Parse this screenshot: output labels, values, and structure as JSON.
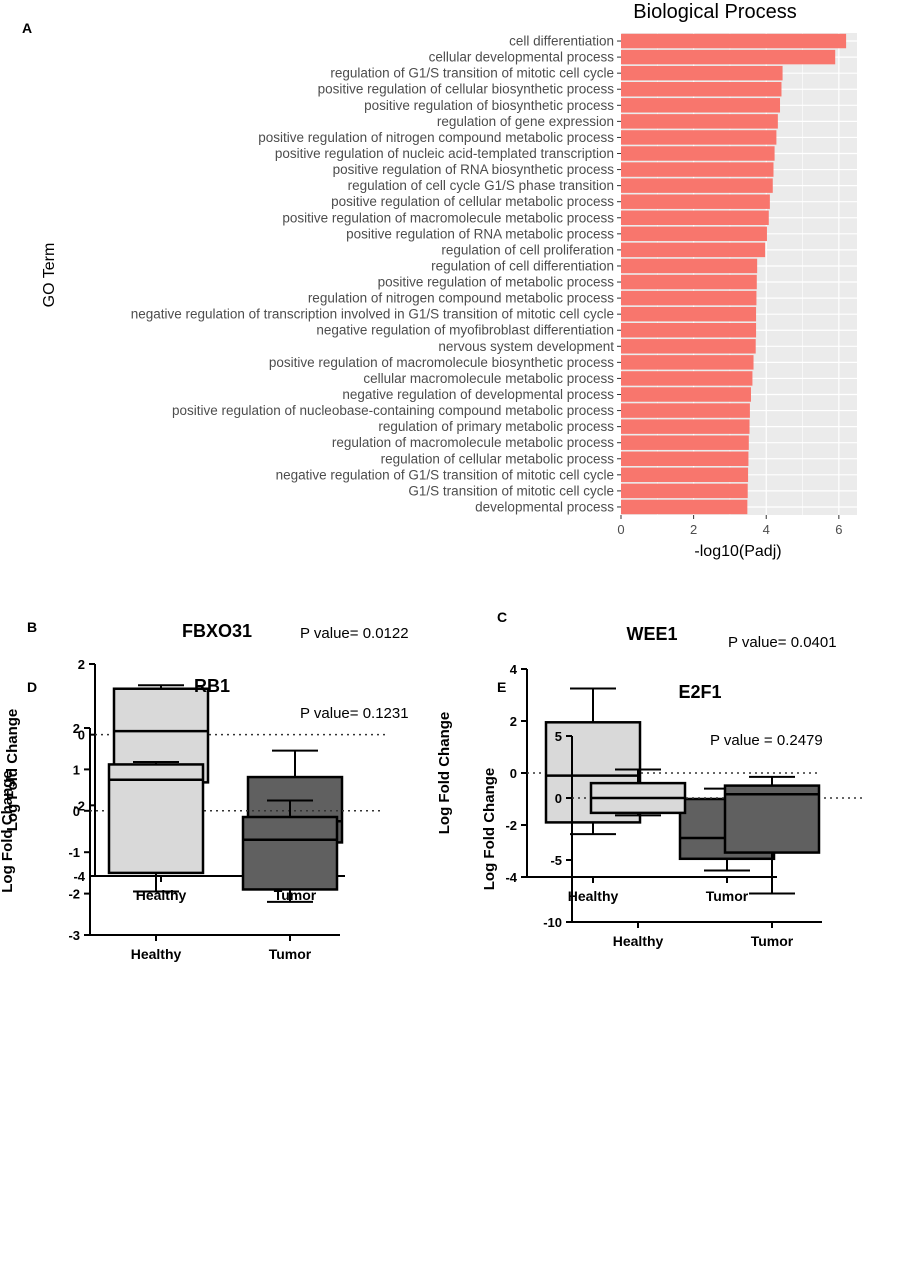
{
  "chart_data": [
    {
      "panel": "A",
      "type": "bar",
      "orientation": "horizontal",
      "title": "Biological Process",
      "xlabel": "-log10(Padj)",
      "ylabel": "GO Term",
      "xlim": [
        0,
        6.5
      ],
      "xticks": [
        "0",
        "2",
        "4",
        "6"
      ],
      "bar_color": "#f8766d",
      "panel_bg": "#ebebeb",
      "grid": true,
      "categories": [
        "cell differentiation",
        "cellular developmental process",
        "regulation of G1/S transition of mitotic cell cycle",
        "positive regulation of cellular biosynthetic process",
        "positive regulation of biosynthetic process",
        "regulation of gene expression",
        "positive regulation of nitrogen compound metabolic process",
        "positive regulation of nucleic acid-templated transcription",
        "positive regulation of RNA biosynthetic process",
        "regulation of cell cycle G1/S phase transition",
        "positive regulation of cellular metabolic process",
        "positive regulation of macromolecule metabolic process",
        "positive regulation of RNA metabolic process",
        "regulation of cell proliferation",
        "regulation of cell differentiation",
        "positive regulation of metabolic process",
        "regulation of nitrogen compound metabolic process",
        "negative regulation of transcription involved in G1/S transition of mitotic cell cycle",
        "negative regulation of myofibroblast differentiation",
        "nervous system development",
        "positive regulation of macromolecule biosynthetic process",
        "cellular macromolecule metabolic process",
        "negative regulation of developmental process",
        "positive regulation of nucleobase-containing compound metabolic process",
        "regulation of primary metabolic process",
        "regulation of macromolecule metabolic process",
        "regulation of cellular metabolic process",
        "negative regulation of G1/S transition of mitotic cell cycle",
        "G1/S transition of mitotic cell cycle",
        "developmental process"
      ],
      "values": [
        6.2,
        5.9,
        4.45,
        4.42,
        4.38,
        4.32,
        4.28,
        4.23,
        4.2,
        4.18,
        4.1,
        4.07,
        4.02,
        3.97,
        3.75,
        3.74,
        3.73,
        3.72,
        3.72,
        3.71,
        3.65,
        3.62,
        3.58,
        3.55,
        3.54,
        3.52,
        3.51,
        3.5,
        3.49,
        3.48
      ]
    },
    {
      "panel": "B",
      "type": "box",
      "title": "FBXO31",
      "ylabel": "Log Fold Change",
      "ylim": [
        -4,
        2
      ],
      "yticks": [
        "2",
        "0",
        "-2",
        "-4"
      ],
      "pvalue": "P value= 0.0122",
      "categories": [
        "Healthy",
        "Tumor"
      ],
      "boxes": [
        {
          "name": "Healthy",
          "min": -2.05,
          "q1": -1.35,
          "median": 0.1,
          "q3": 1.3,
          "max": 1.4,
          "color": "#d9d9d9"
        },
        {
          "name": "Tumor",
          "min": -3.4,
          "q1": -3.05,
          "median": -2.45,
          "q3": -1.2,
          "max": -0.45,
          "color": "#606060"
        }
      ]
    },
    {
      "panel": "C",
      "type": "box",
      "title": "WEE1",
      "ylabel": "Log Fold Change",
      "ylim": [
        -4,
        4
      ],
      "yticks": [
        "4",
        "2",
        "0",
        "-2",
        "-4"
      ],
      "pvalue": "P value= 0.0401",
      "categories": [
        "Healthy",
        "Tumor"
      ],
      "boxes": [
        {
          "name": "Healthy",
          "min": -2.35,
          "q1": -1.9,
          "median": -0.1,
          "q3": 1.95,
          "max": 3.25,
          "color": "#d9d9d9"
        },
        {
          "name": "Tumor",
          "min": -3.75,
          "q1": -3.3,
          "median": -2.5,
          "q3": -1.0,
          "max": -0.6,
          "color": "#606060"
        }
      ]
    },
    {
      "panel": "D",
      "type": "box",
      "title": "RB1",
      "ylabel": "Log Fold Change",
      "ylim": [
        -3,
        2
      ],
      "yticks": [
        "2",
        "1",
        "0",
        "-1",
        "-2",
        "-3"
      ],
      "pvalue": "P value= 0.1231",
      "categories": [
        "Healthy",
        "Tumor"
      ],
      "boxes": [
        {
          "name": "Healthy",
          "min": -1.95,
          "q1": -1.5,
          "median": 0.75,
          "q3": 1.12,
          "max": 1.18,
          "color": "#d9d9d9"
        },
        {
          "name": "Tumor",
          "min": -2.2,
          "q1": -1.9,
          "median": -0.7,
          "q3": -0.15,
          "max": 0.25,
          "color": "#606060"
        }
      ]
    },
    {
      "panel": "E",
      "type": "box",
      "title": "E2F1",
      "ylabel": "Log Fold Change",
      "ylim": [
        -10,
        5
      ],
      "yticks": [
        "5",
        "0",
        "-5",
        "-10"
      ],
      "pvalue": "P value = 0.2479",
      "categories": [
        "Healthy",
        "Tumor"
      ],
      "boxes": [
        {
          "name": "Healthy",
          "min": -1.4,
          "q1": -1.2,
          "median": 0.0,
          "q3": 1.2,
          "max": 2.3,
          "color": "#d9d9d9"
        },
        {
          "name": "Tumor",
          "min": -7.7,
          "q1": -4.4,
          "median": 0.3,
          "q3": 1.0,
          "max": 1.7,
          "color": "#606060"
        }
      ]
    }
  ]
}
